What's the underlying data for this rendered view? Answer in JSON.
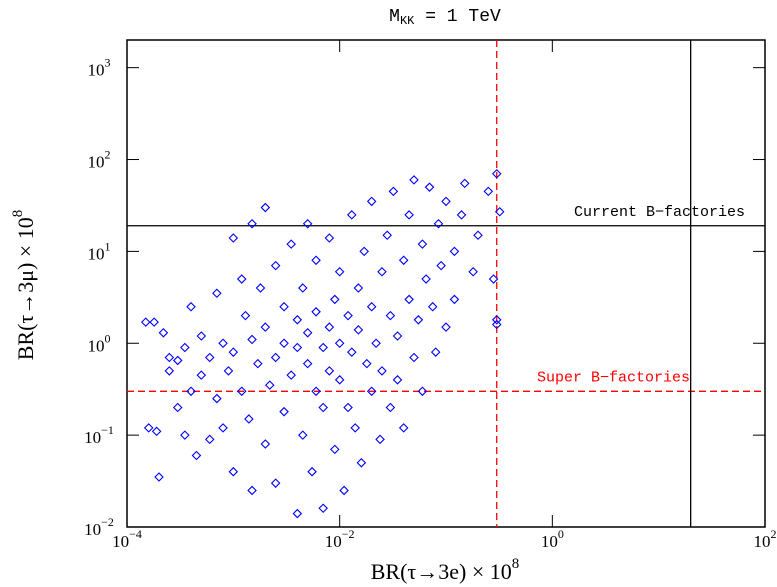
{
  "chart_data": {
    "type": "scatter",
    "title": {
      "text": "M",
      "sub": "KK",
      "rest": " = 1 TeV"
    },
    "x_label": {
      "text": "BR(τ→3e) × 10",
      "sup": "8"
    },
    "y_label": {
      "text": "BR(τ→3μ) × 10",
      "sup": "8"
    },
    "xscale": "log",
    "yscale": "log",
    "xlim": [
      0.0001,
      100
    ],
    "ylim": [
      0.01,
      2000
    ],
    "xticks": [
      {
        "value": 0.0001,
        "label": "10",
        "exp": "−4"
      },
      {
        "value": 0.01,
        "label": "10",
        "exp": "−2"
      },
      {
        "value": 1,
        "label": "10",
        "exp": "0"
      },
      {
        "value": 100,
        "label": "10",
        "exp": "2"
      }
    ],
    "yticks": [
      {
        "value": 0.01,
        "label": "10",
        "exp": "−2"
      },
      {
        "value": 0.1,
        "label": "10",
        "exp": "−1"
      },
      {
        "value": 1,
        "label": "10",
        "exp": "0"
      },
      {
        "value": 10,
        "label": "10",
        "exp": "1"
      },
      {
        "value": 100,
        "label": "10",
        "exp": "2"
      },
      {
        "value": 1000,
        "label": "10",
        "exp": "3"
      }
    ],
    "marker": "diamond",
    "color": "#0000ff",
    "hlines": [
      {
        "value": 19,
        "color": "#000000",
        "dash": false,
        "label": "Current B−factories"
      },
      {
        "value": 0.3,
        "color": "#ff0000",
        "dash": true,
        "label": "Super B−factories"
      }
    ],
    "vlines": [
      {
        "value": 0.3,
        "color": "#ff0000",
        "dash": true
      },
      {
        "value": 20,
        "color": "#000000",
        "dash": false
      }
    ],
    "x": [
      0.00015,
      0.00018,
      0.00016,
      0.00019,
      0.0002,
      0.00022,
      0.00025,
      0.00025,
      0.0003,
      0.0003,
      0.00035,
      0.00035,
      0.0004,
      0.0004,
      0.00045,
      0.0005,
      0.0005,
      0.0006,
      0.0006,
      0.0007,
      0.0007,
      0.0008,
      0.0008,
      0.0009,
      0.001,
      0.001,
      0.001,
      0.0012,
      0.0012,
      0.0013,
      0.0014,
      0.0015,
      0.0015,
      0.0015,
      0.0017,
      0.0018,
      0.002,
      0.002,
      0.002,
      0.0022,
      0.0025,
      0.0025,
      0.0025,
      0.003,
      0.003,
      0.003,
      0.0035,
      0.0035,
      0.004,
      0.004,
      0.004,
      0.0045,
      0.0045,
      0.005,
      0.005,
      0.005,
      0.0055,
      0.006,
      0.006,
      0.006,
      0.007,
      0.007,
      0.007,
      0.008,
      0.008,
      0.008,
      0.009,
      0.009,
      0.01,
      0.01,
      0.01,
      0.011,
      0.012,
      0.012,
      0.013,
      0.013,
      0.014,
      0.015,
      0.015,
      0.016,
      0.017,
      0.018,
      0.02,
      0.02,
      0.02,
      0.022,
      0.024,
      0.025,
      0.025,
      0.028,
      0.03,
      0.03,
      0.032,
      0.035,
      0.035,
      0.04,
      0.04,
      0.045,
      0.045,
      0.05,
      0.05,
      0.055,
      0.06,
      0.06,
      0.065,
      0.07,
      0.075,
      0.08,
      0.085,
      0.09,
      0.1,
      0.1,
      0.12,
      0.12,
      0.14,
      0.15,
      0.18,
      0.2,
      0.25,
      0.28,
      0.3,
      0.3,
      0.32,
      0.3
    ],
    "y": [
      1.7,
      1.7,
      0.12,
      0.11,
      0.035,
      1.3,
      0.5,
      0.7,
      0.65,
      0.2,
      0.9,
      0.1,
      2.5,
      0.3,
      0.06,
      0.45,
      1.2,
      0.09,
      0.7,
      3.5,
      0.25,
      1.0,
      0.12,
      0.5,
      14,
      0.8,
      0.04,
      5,
      0.3,
      2.0,
      0.15,
      20,
      1.1,
      0.025,
      0.6,
      4,
      0.08,
      1.5,
      30,
      0.35,
      7,
      0.7,
      0.03,
      2.5,
      0.18,
      1.0,
      12,
      0.45,
      0.014,
      1.8,
      0.9,
      0.1,
      4,
      0.6,
      20,
      1.3,
      0.04,
      0.3,
      2.2,
      8,
      0.016,
      0.9,
      0.2,
      1.5,
      14,
      0.5,
      3,
      0.07,
      1.0,
      0.4,
      6,
      0.025,
      2,
      0.2,
      25,
      0.8,
      0.12,
      4,
      1.4,
      0.05,
      10,
      0.6,
      2.5,
      0.3,
      35,
      1.0,
      0.09,
      6,
      0.5,
      15,
      2,
      0.2,
      45,
      1.2,
      0.4,
      8,
      0.12,
      3,
      25,
      0.7,
      60,
      1.8,
      12,
      0.3,
      5,
      50,
      2.5,
      0.8,
      20,
      7,
      1.5,
      35,
      10,
      3,
      25,
      55,
      6,
      15,
      45,
      5,
      1.8,
      70,
      27,
      1.6
    ]
  }
}
